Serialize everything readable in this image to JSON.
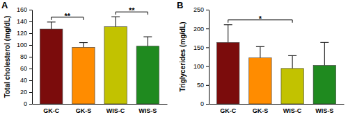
{
  "chart_data": [
    {
      "type": "bar",
      "title": "A",
      "y_label": "Total cholesterol (mg/dL)",
      "categories": [
        "GK-C",
        "GK-S",
        "WIS-C",
        "WIS-S"
      ],
      "values": [
        127,
        96,
        131,
        98
      ],
      "errors": [
        12,
        8,
        17,
        16
      ],
      "colors": [
        "#7b0c0c",
        "#ff8c00",
        "#c2c200",
        "#1f8a1f"
      ],
      "ylim": [
        0,
        160
      ],
      "yticks": [
        0,
        20,
        40,
        60,
        80,
        100,
        120,
        140,
        160
      ],
      "annotations": [
        {
          "text": "**",
          "between": [
            "GK-C",
            "GK-S"
          ]
        },
        {
          "text": "**",
          "between": [
            "WIS-C",
            "WIS-S"
          ]
        }
      ]
    },
    {
      "type": "bar",
      "title": "B",
      "y_label": "Triglycerides (mg/dL)",
      "categories": [
        "GK-C",
        "GK-S",
        "WIS-C",
        "WIS-S"
      ],
      "values": [
        163,
        122,
        94,
        102
      ],
      "errors": [
        47,
        30,
        34,
        61
      ],
      "colors": [
        "#7b0c0c",
        "#ff8c00",
        "#c2c200",
        "#1f8a1f"
      ],
      "ylim": [
        0,
        250
      ],
      "yticks": [
        0,
        50,
        100,
        150,
        200,
        250
      ],
      "annotations": [
        {
          "text": "*",
          "between": [
            "GK-C",
            "WIS-C"
          ]
        }
      ]
    }
  ]
}
